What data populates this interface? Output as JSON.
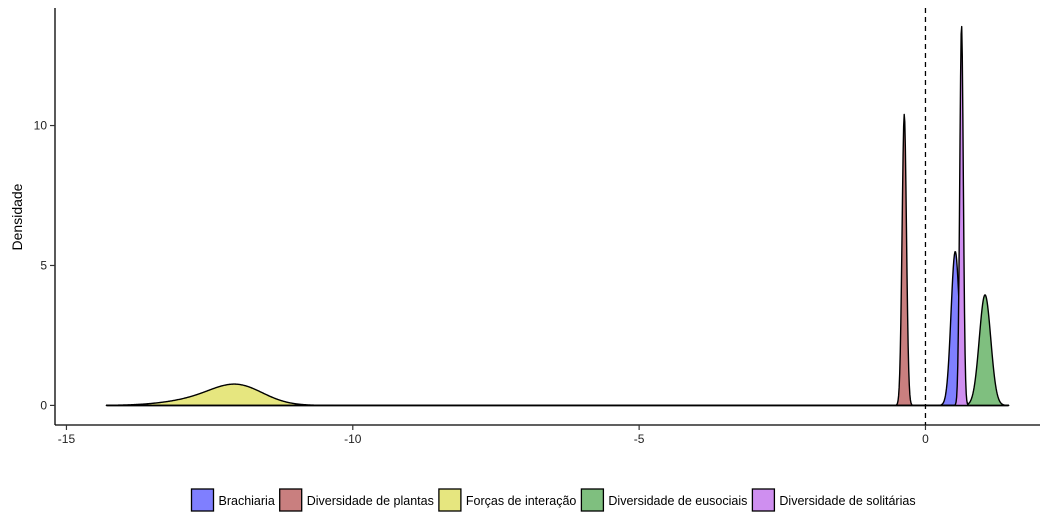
{
  "chart_data": {
    "type": "area",
    "title": "",
    "xlabel": "",
    "ylabel": "Densidade",
    "xlim": [
      -15.2,
      2.0
    ],
    "ylim": [
      -0.7,
      14.2
    ],
    "x_ticks": [
      {
        "value": -15,
        "label": "-15"
      },
      {
        "value": -10,
        "label": "-10"
      },
      {
        "value": -5,
        "label": "-5"
      },
      {
        "value": 0,
        "label": "0"
      }
    ],
    "y_ticks": [
      {
        "value": 0,
        "label": "0"
      },
      {
        "value": 5,
        "label": "5"
      },
      {
        "value": 10,
        "label": "10"
      }
    ],
    "reference_line": {
      "x": 0,
      "style": "dashed"
    },
    "grid": false,
    "legend_position": "bottom",
    "density_range": [
      -14.3,
      1.45
    ],
    "series": [
      {
        "name": "Brachiaria",
        "color": "#7f7fff",
        "components": [
          {
            "mean": 0.52,
            "sd": 0.073,
            "peak": 5.5
          }
        ]
      },
      {
        "name": "Diversidade de plantas",
        "color": "#c97f7f",
        "components": [
          {
            "mean": -0.37,
            "sd": 0.038,
            "peak": 10.4
          }
        ]
      },
      {
        "name": "Forças de interação",
        "color": "#e6e67f",
        "components": [
          {
            "mean": -12.0,
            "sd": 0.45,
            "peak": 0.62
          },
          {
            "mean": -12.6,
            "sd": 0.6,
            "peak": 0.22
          }
        ]
      },
      {
        "name": "Diversidade de eusociais",
        "color": "#7fbf7f",
        "components": [
          {
            "mean": 1.04,
            "sd": 0.1,
            "peak": 3.95
          }
        ]
      },
      {
        "name": "Diversidade de solitárias",
        "color": "#cf8ff0",
        "components": [
          {
            "mean": 0.63,
            "sd": 0.031,
            "peak": 13.6
          }
        ]
      }
    ]
  }
}
